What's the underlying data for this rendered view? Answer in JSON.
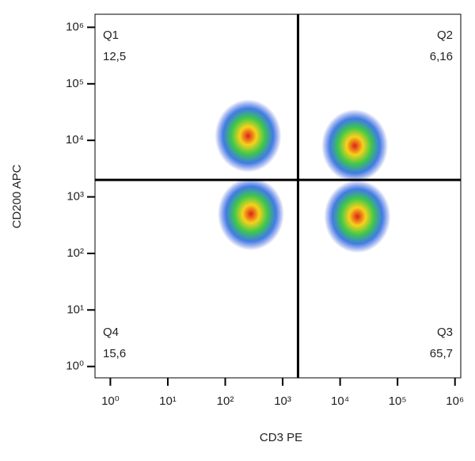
{
  "chart_data": {
    "type": "scatter",
    "x_label": "CD3 PE",
    "y_label": "CD200 APC",
    "log_x": true,
    "log_y": true,
    "xlim": [
      0.54,
      1260000
    ],
    "ylim": [
      0.63,
      1700000
    ],
    "xticks": [
      {
        "value": 1,
        "label": "10⁰"
      },
      {
        "value": 10,
        "label": "10¹"
      },
      {
        "value": 100,
        "label": "10²"
      },
      {
        "value": 1000,
        "label": "10³"
      },
      {
        "value": 10000,
        "label": "10⁴"
      },
      {
        "value": 100000,
        "label": "10⁵"
      },
      {
        "value": 1000000,
        "label": "10⁶"
      }
    ],
    "yticks": [
      {
        "value": 1,
        "label": "10⁰"
      },
      {
        "value": 10,
        "label": "10¹"
      },
      {
        "value": 100,
        "label": "10²"
      },
      {
        "value": 1000,
        "label": "10³"
      },
      {
        "value": 10000,
        "label": "10⁴"
      },
      {
        "value": 100000,
        "label": "10⁵"
      },
      {
        "value": 1000000,
        "label": "10⁶"
      }
    ],
    "gate_x": 1850,
    "gate_y": 2000,
    "quadrants": [
      {
        "name": "Q1",
        "label": "12,5"
      },
      {
        "name": "Q2",
        "label": "6,16"
      },
      {
        "name": "Q3",
        "label": "65,7"
      },
      {
        "name": "Q4",
        "label": "15,6"
      }
    ],
    "series": [
      {
        "x": [
          250,
          280,
          20000,
          18000
        ],
        "y": [
          12000,
          500,
          450,
          8000
        ]
      }
    ]
  }
}
